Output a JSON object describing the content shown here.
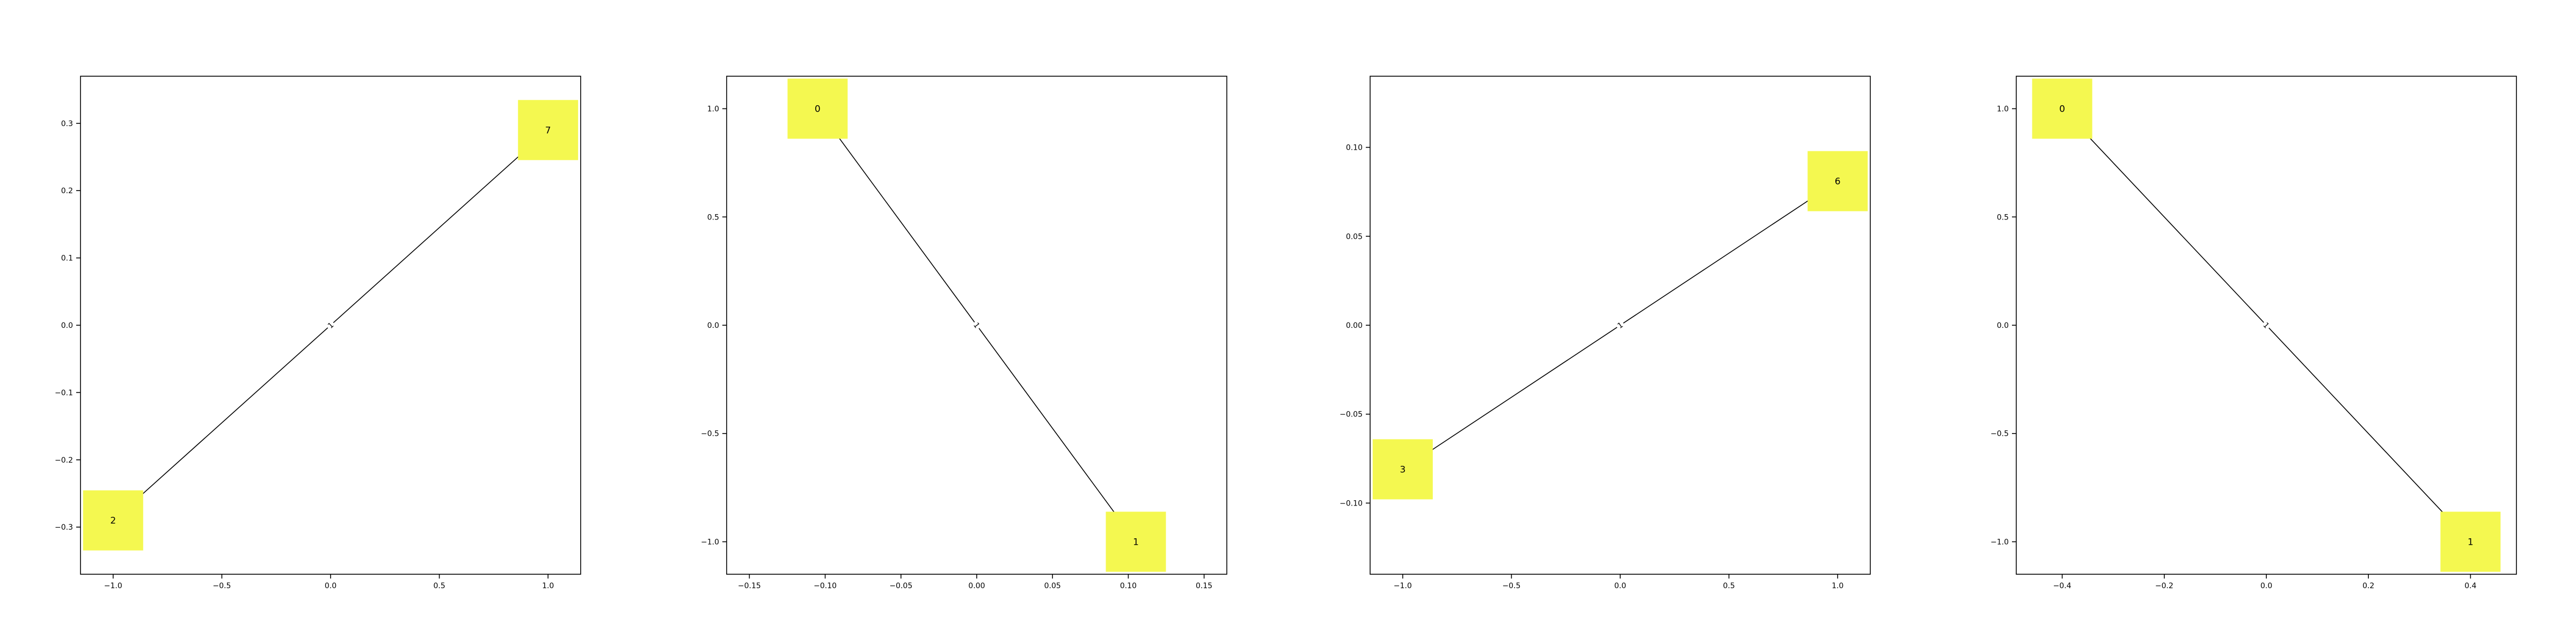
{
  "colors": {
    "node": "#f4f850",
    "edge": "#000000",
    "frame": "#000000",
    "background": "#ffffff"
  },
  "chart_data": [
    {
      "type": "network",
      "grid": false,
      "xlim": [
        -1.15,
        1.15
      ],
      "ylim": [
        -0.37,
        0.37
      ],
      "xticks": [
        -1.0,
        -0.5,
        0.0,
        0.5,
        1.0
      ],
      "xtick_labels": [
        "−1.0",
        "−0.5",
        "0.0",
        "0.5",
        "1.0"
      ],
      "yticks": [
        -0.3,
        -0.2,
        -0.1,
        0.0,
        0.1,
        0.2,
        0.3
      ],
      "ytick_labels": [
        "−0.3",
        "−0.2",
        "−0.1",
        "0.0",
        "0.1",
        "0.2",
        "0.3"
      ],
      "nodes": [
        {
          "id": "2",
          "x": -1.0,
          "y": -0.29
        },
        {
          "id": "7",
          "x": 1.0,
          "y": 0.29
        }
      ],
      "edges": [
        {
          "source": "2",
          "target": "7",
          "label": "1"
        }
      ]
    },
    {
      "type": "network",
      "grid": false,
      "xlim": [
        -0.165,
        0.165
      ],
      "ylim": [
        -1.15,
        1.15
      ],
      "xticks": [
        -0.15,
        -0.1,
        -0.05,
        0.0,
        0.05,
        0.1,
        0.15
      ],
      "xtick_labels": [
        "−0.15",
        "−0.10",
        "−0.05",
        "0.00",
        "0.05",
        "0.10",
        "0.15"
      ],
      "yticks": [
        -1.0,
        -0.5,
        0.0,
        0.5,
        1.0
      ],
      "ytick_labels": [
        "−1.0",
        "−0.5",
        "0.0",
        "0.5",
        "1.0"
      ],
      "nodes": [
        {
          "id": "0",
          "x": -0.105,
          "y": 1.0
        },
        {
          "id": "1",
          "x": 0.105,
          "y": -1.0
        }
      ],
      "edges": [
        {
          "source": "0",
          "target": "1",
          "label": "1"
        }
      ]
    },
    {
      "type": "network",
      "grid": false,
      "xlim": [
        -1.15,
        1.15
      ],
      "ylim": [
        -0.14,
        0.14
      ],
      "xticks": [
        -1.0,
        -0.5,
        0.0,
        0.5,
        1.0
      ],
      "xtick_labels": [
        "−1.0",
        "−0.5",
        "0.0",
        "0.5",
        "1.0"
      ],
      "yticks": [
        -0.1,
        -0.05,
        0.0,
        0.05,
        0.1
      ],
      "ytick_labels": [
        "−0.10",
        "−0.05",
        "0.00",
        "0.05",
        "0.10"
      ],
      "nodes": [
        {
          "id": "3",
          "x": -1.0,
          "y": -0.081
        },
        {
          "id": "6",
          "x": 1.0,
          "y": 0.081
        }
      ],
      "edges": [
        {
          "source": "3",
          "target": "6",
          "label": "1"
        }
      ]
    },
    {
      "type": "network",
      "grid": false,
      "xlim": [
        -0.49,
        0.49
      ],
      "ylim": [
        -1.15,
        1.15
      ],
      "xticks": [
        -0.4,
        -0.2,
        0.0,
        0.2,
        0.4
      ],
      "xtick_labels": [
        "−0.4",
        "−0.2",
        "0.0",
        "0.2",
        "0.4"
      ],
      "yticks": [
        -1.0,
        -0.5,
        0.0,
        0.5,
        1.0
      ],
      "ytick_labels": [
        "−1.0",
        "−0.5",
        "0.0",
        "0.5",
        "1.0"
      ],
      "nodes": [
        {
          "id": "0",
          "x": -0.4,
          "y": 1.0
        },
        {
          "id": "1",
          "x": 0.4,
          "y": -1.0
        }
      ],
      "edges": [
        {
          "source": "0",
          "target": "1",
          "label": "1"
        }
      ]
    }
  ]
}
